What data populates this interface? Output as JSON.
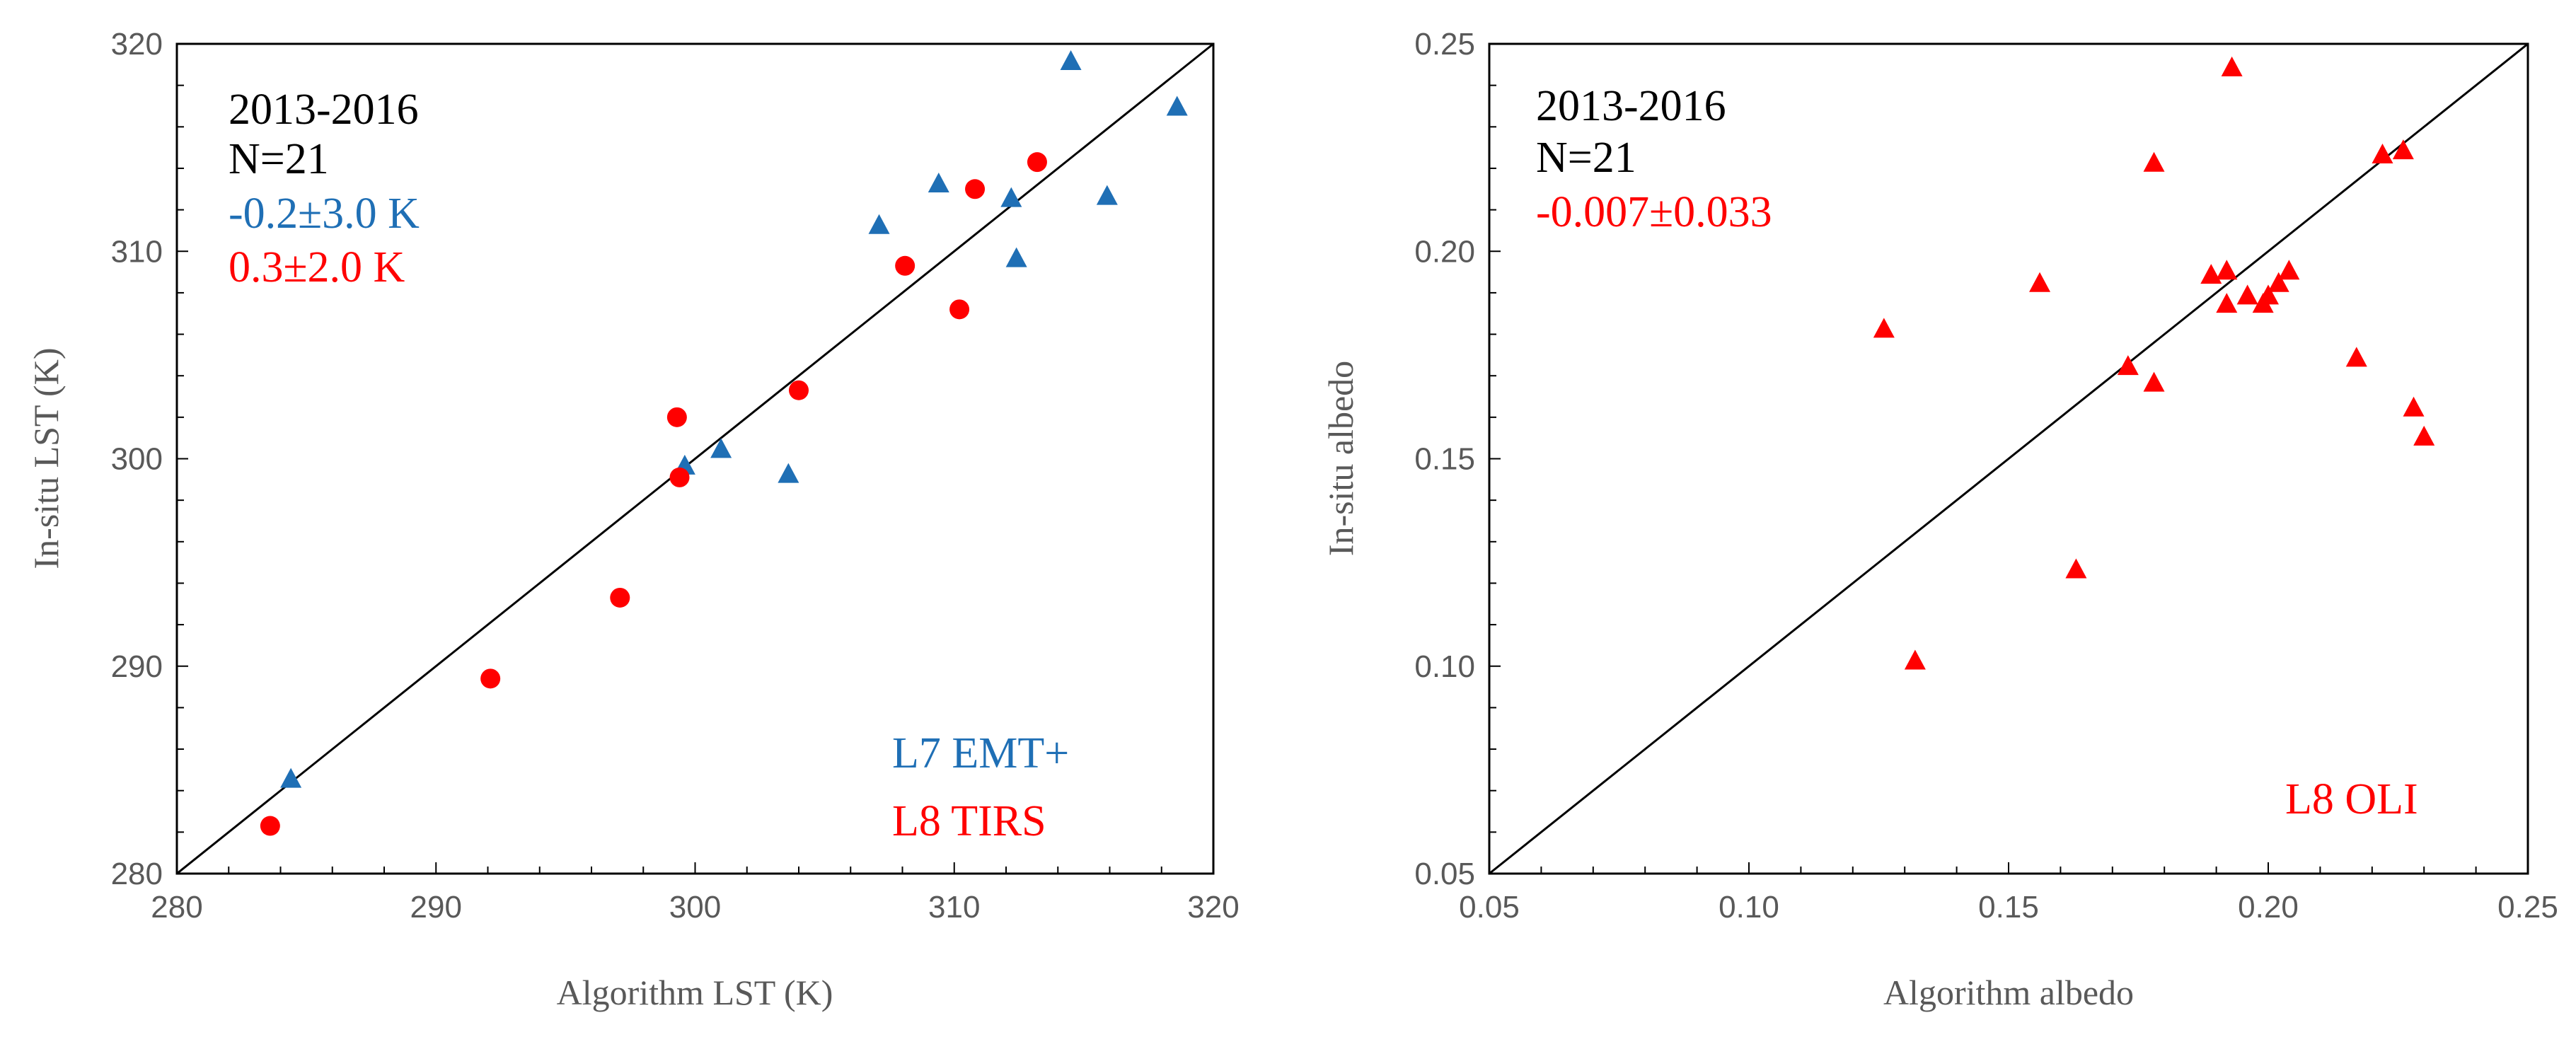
{
  "chart_data": [
    {
      "type": "scatter",
      "xlabel": "Algorithm LST (K)",
      "ylabel": "In-situ LST (K)",
      "xlim": [
        280,
        320
      ],
      "ylim": [
        280,
        320
      ],
      "xticks": [
        280,
        290,
        300,
        310,
        320
      ],
      "yticks": [
        280,
        290,
        300,
        310,
        320
      ],
      "tick_labels_x": [
        "280",
        "290",
        "300",
        "310",
        "320"
      ],
      "tick_labels_y": [
        "280",
        "290",
        "300",
        "310",
        "320"
      ],
      "one_to_one_line": true,
      "stats_lines": [
        "2013-2016",
        "N=21"
      ],
      "series": [
        {
          "name": "L7 EMT+",
          "marker": "triangle",
          "color": "#1F6FB5",
          "bias_label": "-0.2±3.0 K",
          "points": [
            [
              284.4,
              284.5
            ],
            [
              299.6,
              299.6
            ],
            [
              301.0,
              300.4
            ],
            [
              303.6,
              299.2
            ],
            [
              307.1,
              311.2
            ],
            [
              309.4,
              313.2
            ],
            [
              312.2,
              312.5
            ],
            [
              312.4,
              309.6
            ],
            [
              314.5,
              319.1
            ],
            [
              315.9,
              312.6
            ],
            [
              318.6,
              316.9
            ]
          ]
        },
        {
          "name": "L8 TIRS",
          "marker": "circle",
          "color": "#FF0000",
          "bias_label": "0.3±2.0 K",
          "points": [
            [
              283.6,
              282.3
            ],
            [
              292.1,
              289.4
            ],
            [
              297.1,
              293.3
            ],
            [
              299.3,
              302.0
            ],
            [
              299.4,
              299.1
            ],
            [
              304.0,
              303.3
            ],
            [
              308.1,
              309.3
            ],
            [
              310.2,
              307.2
            ],
            [
              310.8,
              313.0
            ],
            [
              313.2,
              314.3
            ]
          ]
        }
      ]
    },
    {
      "type": "scatter",
      "xlabel": "Algorithm albedo",
      "ylabel": "In-situ albedo",
      "xlim": [
        0.05,
        0.25
      ],
      "ylim": [
        0.05,
        0.25
      ],
      "xticks": [
        0.05,
        0.1,
        0.15,
        0.2,
        0.25
      ],
      "yticks": [
        0.05,
        0.1,
        0.15,
        0.2,
        0.25
      ],
      "tick_labels_x": [
        "0.05",
        "0.10",
        "0.15",
        "0.20",
        "0.25"
      ],
      "tick_labels_y": [
        "0.05",
        "0.10",
        "0.15",
        "0.20",
        "0.25"
      ],
      "one_to_one_line": true,
      "stats_lines": [
        "2013-2016",
        "N=21"
      ],
      "series": [
        {
          "name": "L8 OLI",
          "marker": "triangle",
          "color": "#FF0000",
          "bias_label": "-0.007±0.033",
          "points": [
            [
              0.126,
              0.181
            ],
            [
              0.132,
              0.101
            ],
            [
              0.156,
              0.192
            ],
            [
              0.163,
              0.123
            ],
            [
              0.173,
              0.172
            ],
            [
              0.178,
              0.168
            ],
            [
              0.178,
              0.221
            ],
            [
              0.189,
              0.194
            ],
            [
              0.192,
              0.187
            ],
            [
              0.192,
              0.195
            ],
            [
              0.193,
              0.244
            ],
            [
              0.196,
              0.189
            ],
            [
              0.199,
              0.187
            ],
            [
              0.2,
              0.189
            ],
            [
              0.202,
              0.192
            ],
            [
              0.204,
              0.195
            ],
            [
              0.217,
              0.174
            ],
            [
              0.222,
              0.223
            ],
            [
              0.226,
              0.224
            ],
            [
              0.228,
              0.162
            ],
            [
              0.23,
              0.155
            ]
          ]
        }
      ]
    }
  ]
}
